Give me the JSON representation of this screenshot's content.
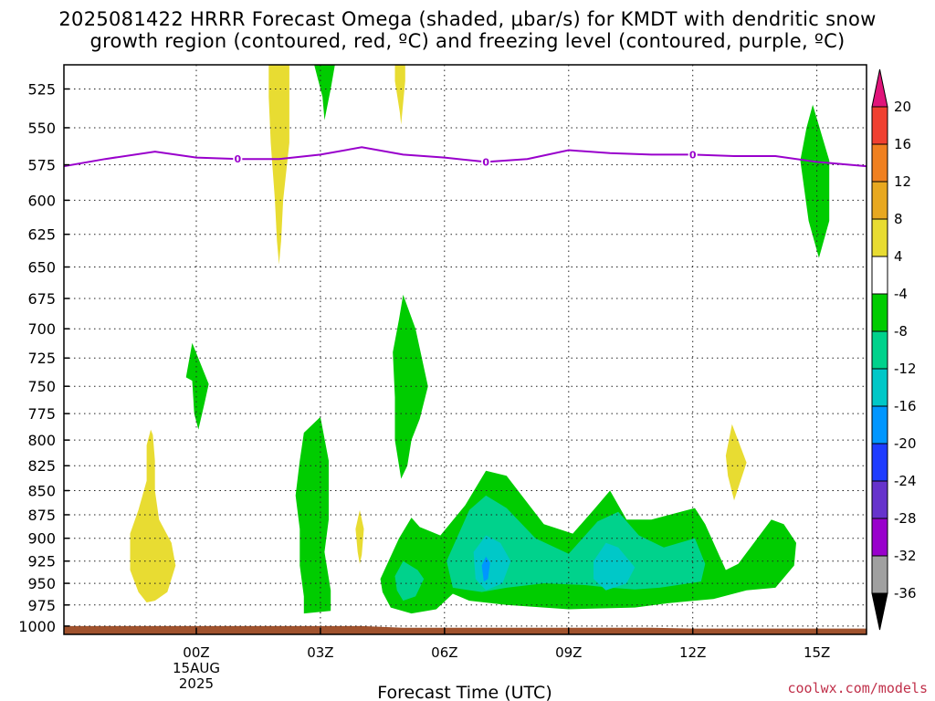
{
  "chart_data": {
    "type": "contour",
    "title_line1": "2025081422 HRRR Forecast Omega (shaded, μbar/s) for KMDT with dendritic snow",
    "title_line2": "growth region (contoured, red, ºC) and freezing level (contoured, purple, ºC)",
    "xlabel": "Forecast Time (UTC)",
    "credit": "coolwx.com/models",
    "y_axis": {
      "scale": "pressure",
      "inverted": true,
      "ylim": [
        510,
        1010
      ],
      "ticks": [
        525,
        550,
        575,
        600,
        625,
        650,
        675,
        700,
        725,
        750,
        775,
        800,
        825,
        850,
        875,
        900,
        925,
        950,
        975,
        1000
      ]
    },
    "x_axis": {
      "unit": "hours from 2025-08-15 00Z",
      "xlim": [
        -3.2,
        16.2
      ],
      "ticks": [
        {
          "value": 0,
          "label": "00Z",
          "sub1": "15AUG",
          "sub2": "2025"
        },
        {
          "value": 3,
          "label": "03Z",
          "sub1": "",
          "sub2": ""
        },
        {
          "value": 6,
          "label": "06Z",
          "sub1": "",
          "sub2": ""
        },
        {
          "value": 9,
          "label": "09Z",
          "sub1": "",
          "sub2": ""
        },
        {
          "value": 12,
          "label": "12Z",
          "sub1": "",
          "sub2": ""
        },
        {
          "value": 15,
          "label": "15Z",
          "sub1": "",
          "sub2": ""
        }
      ]
    },
    "grid": true,
    "colorbar": {
      "unit": "μbar/s",
      "boundaries": [
        -36,
        -32,
        -28,
        -24,
        -20,
        -16,
        -12,
        -8,
        -4,
        4,
        8,
        12,
        16,
        20
      ],
      "colors": [
        "#000000",
        "#a0a0a0",
        "#9900cc",
        "#6633cc",
        "#1e3cff",
        "#0096ff",
        "#00c8c8",
        "#00d28c",
        "#00cc00",
        "#ffffff",
        "#e8dc32",
        "#e8a820",
        "#f08020",
        "#f04030",
        "#e0147a"
      ]
    },
    "freezing_level": {
      "label": "0",
      "color": "#9900cc",
      "x": [
        -3.2,
        -2.2,
        -1,
        0,
        1,
        2,
        3,
        4,
        5,
        6,
        7,
        8,
        9,
        10,
        11,
        12,
        13,
        14,
        15,
        16.2
      ],
      "pressure": [
        576,
        571,
        566,
        570,
        571,
        571,
        568,
        563,
        568,
        570,
        573,
        571,
        565,
        567,
        568,
        568,
        569,
        569,
        573,
        576
      ]
    },
    "surface": {
      "color": "#a0522d",
      "x": [
        -3.2,
        4,
        5,
        11,
        12,
        16.2
      ],
      "pressure": [
        1000,
        1000,
        1002,
        1002,
        1003,
        1003
      ]
    },
    "omega_regions": [
      {
        "level": 4,
        "color": "#e8dc32",
        "points": [
          [
            -1.0,
            970
          ],
          [
            -0.7,
            960
          ],
          [
            -0.5,
            930
          ],
          [
            -0.6,
            905
          ],
          [
            -0.9,
            880
          ],
          [
            -1.0,
            850
          ],
          [
            -1.0,
            820
          ],
          [
            -1.05,
            795
          ],
          [
            -1.1,
            790
          ],
          [
            -1.2,
            805
          ],
          [
            -1.2,
            840
          ],
          [
            -1.4,
            870
          ],
          [
            -1.6,
            895
          ],
          [
            -1.6,
            935
          ],
          [
            -1.4,
            960
          ],
          [
            -1.2,
            972
          ]
        ]
      },
      {
        "level": 4,
        "color": "#e8dc32",
        "points": [
          [
            1.75,
            510
          ],
          [
            2.25,
            510
          ],
          [
            2.25,
            560
          ],
          [
            2.1,
            600
          ],
          [
            2.05,
            630
          ],
          [
            2.0,
            648
          ],
          [
            1.95,
            630
          ],
          [
            1.9,
            600
          ],
          [
            1.8,
            560
          ],
          [
            1.75,
            530
          ]
        ]
      },
      {
        "level": 4,
        "color": "#e8dc32",
        "points": [
          [
            4.8,
            510
          ],
          [
            5.05,
            510
          ],
          [
            5.05,
            520
          ],
          [
            4.95,
            548
          ],
          [
            4.92,
            540
          ],
          [
            4.8,
            520
          ]
        ]
      },
      {
        "level": 4,
        "color": "#e8dc32",
        "points": [
          [
            3.95,
            870
          ],
          [
            4.05,
            890
          ],
          [
            4.0,
            918
          ],
          [
            3.95,
            928
          ],
          [
            3.9,
            915
          ],
          [
            3.85,
            890
          ]
        ]
      },
      {
        "level": 4,
        "color": "#e8dc32",
        "points": [
          [
            12.95,
            785
          ],
          [
            13.3,
            822
          ],
          [
            13.0,
            860
          ],
          [
            12.85,
            835
          ],
          [
            12.8,
            815
          ]
        ]
      },
      {
        "level": -4,
        "color": "#00cc00",
        "points": [
          [
            2.85,
            510
          ],
          [
            3.35,
            510
          ],
          [
            3.25,
            525
          ],
          [
            3.1,
            545
          ],
          [
            3.05,
            530
          ],
          [
            2.95,
            520
          ]
        ]
      },
      {
        "level": -4,
        "color": "#00cc00",
        "points": [
          [
            14.9,
            535
          ],
          [
            15.3,
            572
          ],
          [
            15.3,
            615
          ],
          [
            15.05,
            643
          ],
          [
            14.8,
            615
          ],
          [
            14.6,
            572
          ],
          [
            14.75,
            550
          ]
        ]
      },
      {
        "level": -4,
        "color": "#00cc00",
        "points": [
          [
            -0.1,
            712
          ],
          [
            0.3,
            748
          ],
          [
            0.2,
            765
          ],
          [
            0.05,
            790
          ],
          [
            -0.05,
            775
          ],
          [
            -0.1,
            745
          ],
          [
            -0.25,
            742
          ]
        ]
      },
      {
        "level": -4,
        "color": "#00cc00",
        "points": [
          [
            3.0,
            778
          ],
          [
            3.2,
            820
          ],
          [
            3.2,
            880
          ],
          [
            3.1,
            915
          ],
          [
            3.25,
            958
          ],
          [
            3.25,
            982
          ],
          [
            2.6,
            985
          ],
          [
            2.6,
            965
          ],
          [
            2.5,
            930
          ],
          [
            2.5,
            890
          ],
          [
            2.4,
            855
          ],
          [
            2.5,
            820
          ],
          [
            2.6,
            793
          ]
        ]
      },
      {
        "level": -4,
        "color": "#00cc00",
        "points": [
          [
            5.0,
            672
          ],
          [
            5.3,
            700
          ],
          [
            5.6,
            750
          ],
          [
            5.4,
            780
          ],
          [
            5.2,
            800
          ],
          [
            5.1,
            825
          ],
          [
            4.95,
            838
          ],
          [
            4.8,
            800
          ],
          [
            4.8,
            760
          ],
          [
            4.75,
            720
          ],
          [
            4.9,
            692
          ]
        ]
      },
      {
        "level": -4,
        "color": "#00cc00",
        "points": [
          [
            4.45,
            945
          ],
          [
            4.9,
            900
          ],
          [
            5.2,
            878
          ],
          [
            5.4,
            888
          ],
          [
            5.9,
            897
          ],
          [
            6.5,
            865
          ],
          [
            7.0,
            830
          ],
          [
            7.5,
            835
          ],
          [
            8.4,
            885
          ],
          [
            9.1,
            895
          ],
          [
            9.6,
            870
          ],
          [
            10.0,
            850
          ],
          [
            10.4,
            880
          ],
          [
            11.0,
            880
          ],
          [
            12.05,
            868
          ],
          [
            12.3,
            885
          ],
          [
            12.8,
            935
          ],
          [
            13.1,
            928
          ],
          [
            13.9,
            880
          ],
          [
            14.2,
            885
          ],
          [
            14.5,
            905
          ],
          [
            14.45,
            930
          ],
          [
            14.0,
            955
          ],
          [
            13.3,
            958
          ],
          [
            12.5,
            968
          ],
          [
            11.4,
            973
          ],
          [
            10.6,
            978
          ],
          [
            9.0,
            980
          ],
          [
            7.5,
            975
          ],
          [
            6.6,
            970
          ],
          [
            6.2,
            962
          ],
          [
            5.8,
            980
          ],
          [
            5.2,
            985
          ],
          [
            4.7,
            978
          ],
          [
            4.5,
            960
          ]
        ]
      },
      {
        "level": -8,
        "color": "#00d28c",
        "points": [
          [
            4.8,
            942
          ],
          [
            5.0,
            925
          ],
          [
            5.35,
            935
          ],
          [
            5.5,
            945
          ],
          [
            5.3,
            965
          ],
          [
            5.0,
            970
          ],
          [
            4.85,
            958
          ]
        ]
      },
      {
        "level": -8,
        "color": "#00d28c",
        "points": [
          [
            6.05,
            925
          ],
          [
            6.6,
            870
          ],
          [
            7.0,
            855
          ],
          [
            7.5,
            868
          ],
          [
            8.2,
            900
          ],
          [
            9.0,
            917
          ],
          [
            9.7,
            882
          ],
          [
            10.2,
            872
          ],
          [
            10.7,
            897
          ],
          [
            11.3,
            910
          ],
          [
            12.05,
            900
          ],
          [
            12.3,
            928
          ],
          [
            12.2,
            948
          ],
          [
            11.2,
            955
          ],
          [
            10.6,
            957
          ],
          [
            10.0,
            955
          ],
          [
            9.4,
            952
          ],
          [
            8.4,
            950
          ],
          [
            7.5,
            955
          ],
          [
            6.9,
            960
          ],
          [
            6.2,
            955
          ]
        ]
      },
      {
        "level": -12,
        "color": "#00c8c8",
        "points": [
          [
            6.7,
            915
          ],
          [
            7.0,
            897
          ],
          [
            7.35,
            905
          ],
          [
            7.6,
            925
          ],
          [
            7.4,
            950
          ],
          [
            7.0,
            958
          ],
          [
            6.75,
            945
          ]
        ]
      },
      {
        "level": -12,
        "color": "#00c8c8",
        "points": [
          [
            9.6,
            925
          ],
          [
            9.9,
            905
          ],
          [
            10.2,
            910
          ],
          [
            10.6,
            932
          ],
          [
            10.4,
            950
          ],
          [
            9.9,
            958
          ],
          [
            9.6,
            945
          ]
        ]
      },
      {
        "level": -16,
        "color": "#0096ff",
        "points": [
          [
            7.0,
            920
          ],
          [
            7.1,
            927
          ],
          [
            7.05,
            945
          ],
          [
            6.95,
            948
          ],
          [
            6.9,
            930
          ]
        ]
      }
    ]
  }
}
